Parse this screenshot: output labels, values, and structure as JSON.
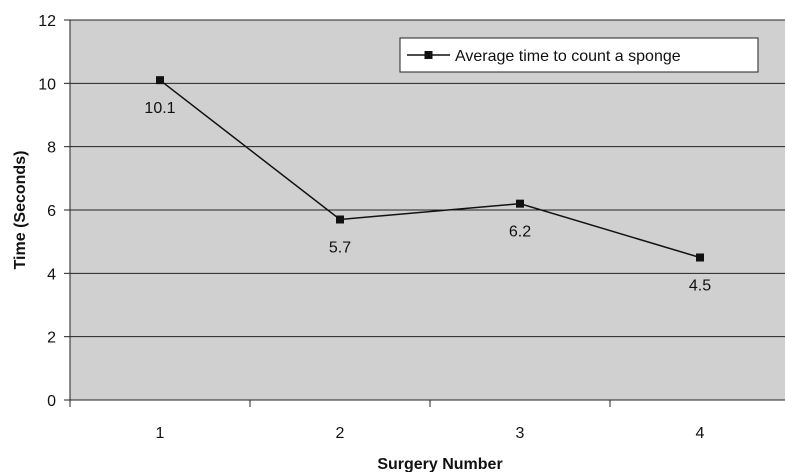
{
  "chart_data": {
    "type": "line",
    "xlabel": "Surgery Number",
    "ylabel": "Time (Seconds)",
    "x": [
      1,
      2,
      3,
      4
    ],
    "ylim": [
      0,
      12
    ],
    "yticks": [
      0,
      2,
      4,
      6,
      8,
      10,
      12
    ],
    "grid": "horizontal",
    "legend_position": "top-right",
    "colors": {
      "plot_background": "#d0d0d0",
      "line": "#111111",
      "gridline": "#222222"
    },
    "series": [
      {
        "name": "Average time to count a sponge",
        "values": [
          10.1,
          5.7,
          6.2,
          4.5
        ],
        "labels": [
          "10.1",
          "5.7",
          "6.2",
          "4.5"
        ],
        "marker": "square"
      }
    ]
  }
}
